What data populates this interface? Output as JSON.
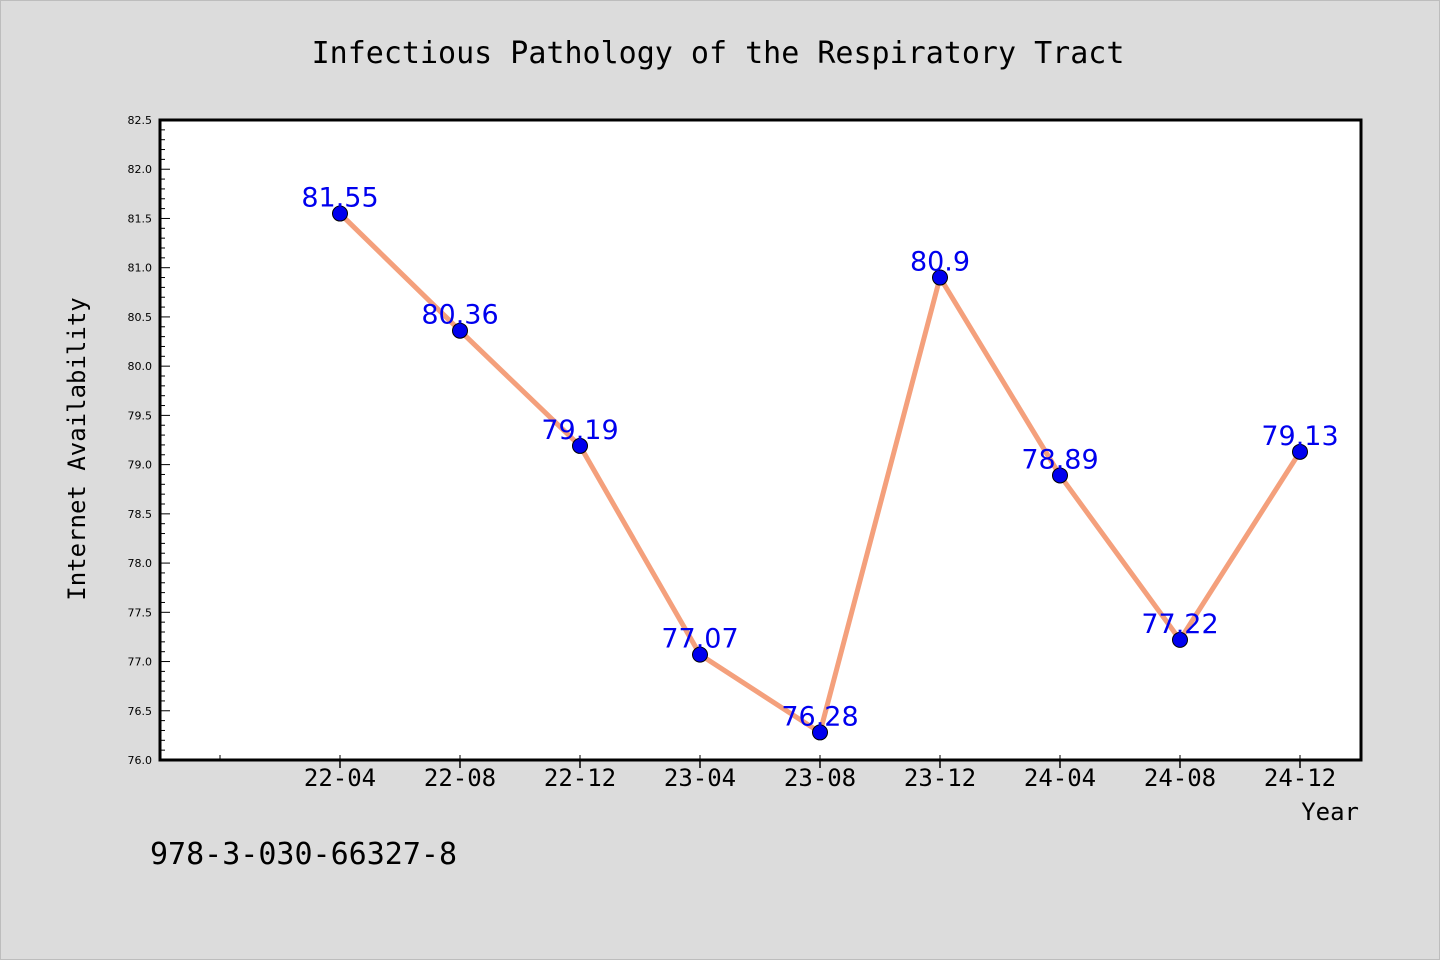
{
  "chart_data": {
    "type": "line",
    "title": "Infectious Pathology of the Respiratory Tract",
    "xlabel": "Year",
    "ylabel": "Internet Availability",
    "categories": [
      "22-04",
      "22-08",
      "22-12",
      "23-04",
      "23-08",
      "23-12",
      "24-04",
      "24-08",
      "24-12"
    ],
    "series": [
      {
        "values": [
          81.55,
          80.36,
          79.19,
          77.07,
          76.28,
          80.9,
          78.89,
          77.22,
          79.13
        ],
        "data_labels": [
          "81.55",
          "80.36",
          "79.19",
          "77.07",
          "76.28",
          "80.9",
          "78.89",
          "77.22",
          "79.13"
        ],
        "line_color": "#f4a07c",
        "marker_color": "#0000ee",
        "label_color": "#0000ee"
      }
    ],
    "ylim": [
      76.0,
      82.5
    ],
    "yticks": [
      "76.0",
      "76.5",
      "77.0",
      "77.5",
      "78.0",
      "78.5",
      "79.0",
      "79.5",
      "80.0",
      "80.5",
      "81.0",
      "81.5",
      "82.0",
      "82.5"
    ],
    "grid": false,
    "legend": "none"
  },
  "footnote": "978-3-030-66327-8",
  "colors": {
    "background": "#dcdcdc",
    "plot_background": "#ffffff",
    "axis": "#000000"
  }
}
